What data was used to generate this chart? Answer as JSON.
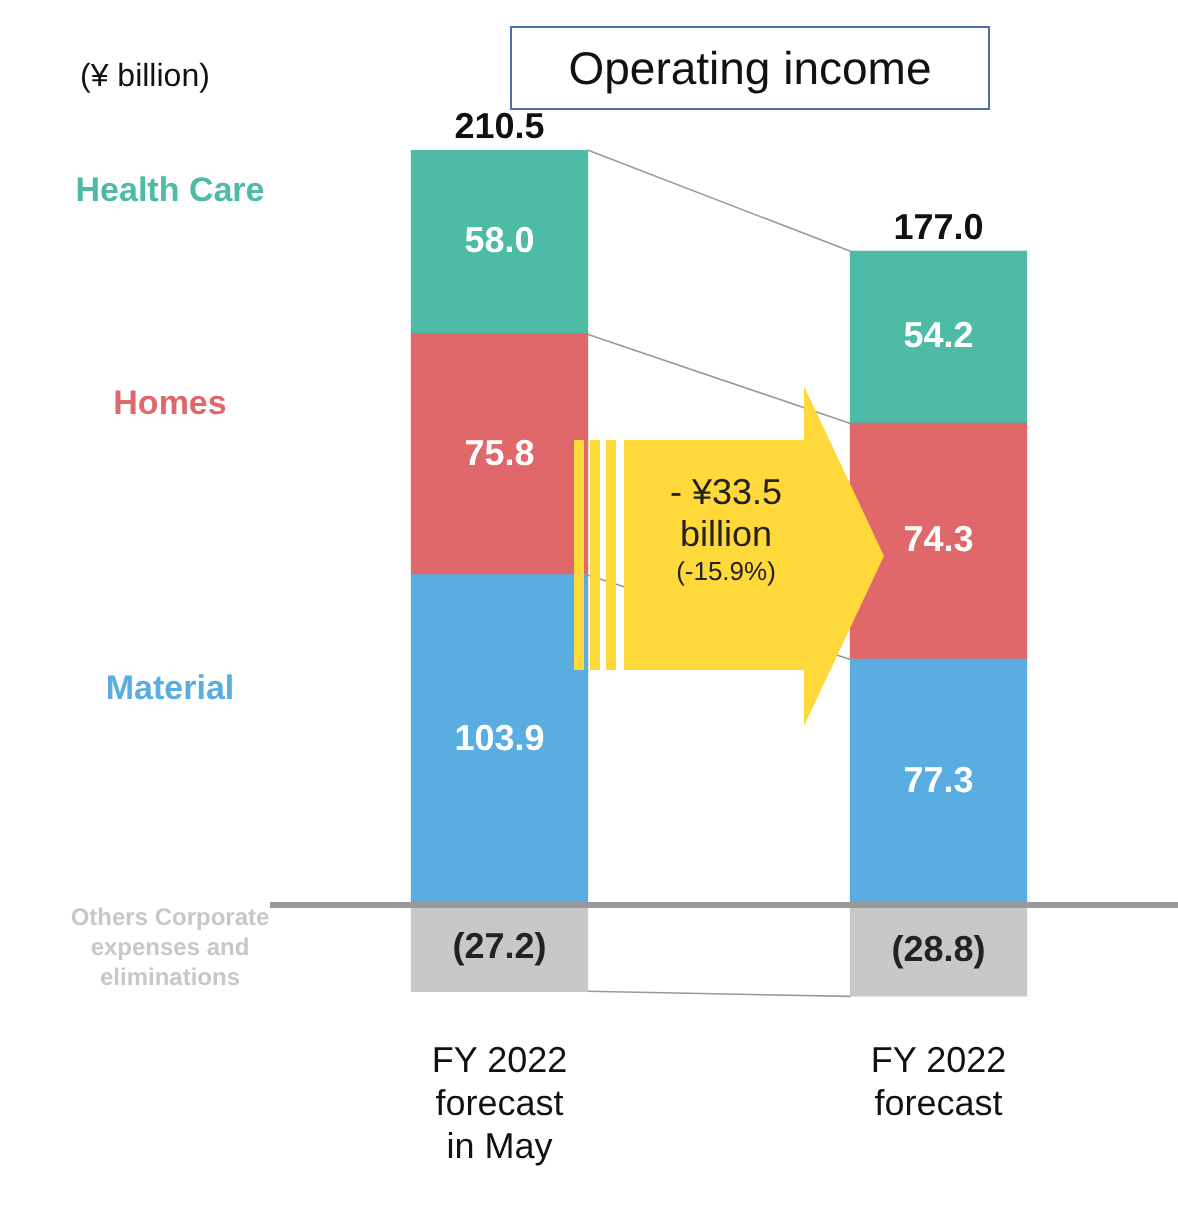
{
  "chart_data": {
    "type": "bar",
    "stacked": true,
    "title": "Operating income",
    "categories": [
      "FY 2022 forecast in May",
      "FY 2022 forecast"
    ],
    "series": [
      {
        "name": "Material",
        "color": "#5aade0",
        "values": [
          103.9,
          77.3
        ],
        "value_labels": [
          "103.9",
          "77.3"
        ]
      },
      {
        "name": "Homes",
        "color": "#e0676a",
        "values": [
          75.8,
          74.3
        ],
        "value_labels": [
          "75.8",
          "74.3"
        ]
      },
      {
        "name": "Health Care",
        "color": "#4dbba5",
        "values": [
          58.0,
          54.2
        ],
        "value_labels": [
          "58.0",
          "54.2"
        ]
      },
      {
        "name": "Others Corporate expenses and eliminations",
        "color": "#c8c8c8",
        "values": [
          -27.2,
          -28.8
        ],
        "value_labels": [
          "(27.2)",
          "(28.8)"
        ]
      }
    ],
    "totals": [
      "210.5",
      "177.0"
    ],
    "annotations": [
      "(¥ billion)",
      "- ¥33.5 billion",
      "(-15.9%)"
    ],
    "legend": false,
    "grid": false
  }
}
